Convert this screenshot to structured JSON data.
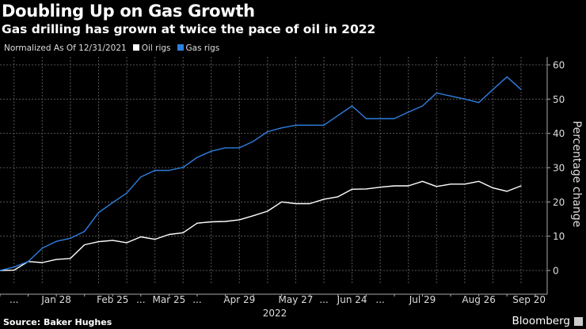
{
  "header": {
    "title": "Doubling Up on Gas Growth",
    "subtitle": "Gas drilling has grown at twice the pace of oil in 2022"
  },
  "footer": {
    "source": "Source: Baker Hughes",
    "brand": "Bloomberg"
  },
  "chart_data": {
    "type": "line",
    "note": "Normalized As Of 12/31/2021",
    "ylabel": "Percentage change",
    "xlabel": "2022",
    "ylim": [
      0,
      60
    ],
    "yticks": [
      0,
      10,
      20,
      30,
      40,
      50,
      60
    ],
    "grid": true,
    "legend_position": "top-left",
    "x_start": "2021-12-31",
    "x_step_days": 7,
    "xticks": [
      {
        "label": "...",
        "date": "2022-01-07"
      },
      {
        "label": "Jan 28",
        "date": "2022-01-28"
      },
      {
        "label": "Feb 25",
        "date": "2022-02-25"
      },
      {
        "label": "...",
        "date": "2022-03-11"
      },
      {
        "label": "Mar 25",
        "date": "2022-03-25"
      },
      {
        "label": "...",
        "date": "2022-04-08"
      },
      {
        "label": "Apr 29",
        "date": "2022-04-29"
      },
      {
        "label": "May 27",
        "date": "2022-05-27"
      },
      {
        "label": "...",
        "date": "2022-06-10"
      },
      {
        "label": "Jun 24",
        "date": "2022-06-24"
      },
      {
        "label": "...",
        "date": "2022-07-08"
      },
      {
        "label": "Jul 29",
        "date": "2022-07-29"
      },
      {
        "label": "Aug 26",
        "date": "2022-08-26"
      },
      {
        "label": "Sep 20",
        "date": "2022-09-20"
      }
    ],
    "series": [
      {
        "name": "Oil rigs",
        "color": "#ffffff",
        "values": [
          0,
          0.1,
          2.6,
          2.3,
          3.2,
          3.5,
          7.5,
          8.4,
          8.8,
          8.1,
          9.8,
          9.1,
          10.5,
          11.0,
          13.8,
          14.2,
          14.3,
          14.8,
          16.0,
          17.3,
          20.0,
          19.5,
          19.5,
          20.8,
          21.5,
          23.7,
          23.8,
          24.3,
          24.7,
          24.7,
          26.0,
          24.5,
          25.2,
          25.2,
          26.0,
          24.1,
          23.1,
          24.7
        ]
      },
      {
        "name": "Gas rigs",
        "color": "#2e7fe0",
        "values": [
          0,
          1.0,
          2.6,
          6.5,
          8.5,
          9.4,
          11.4,
          16.9,
          19.8,
          22.6,
          27.3,
          29.2,
          29.2,
          30.1,
          33.0,
          34.8,
          35.8,
          35.8,
          37.7,
          40.5,
          41.6,
          42.4,
          42.4,
          42.4,
          45.2,
          48.0,
          44.3,
          44.3,
          44.3,
          46.2,
          48.0,
          51.8,
          50.9,
          50.0,
          49.0,
          52.8,
          56.5,
          52.8
        ]
      }
    ]
  }
}
